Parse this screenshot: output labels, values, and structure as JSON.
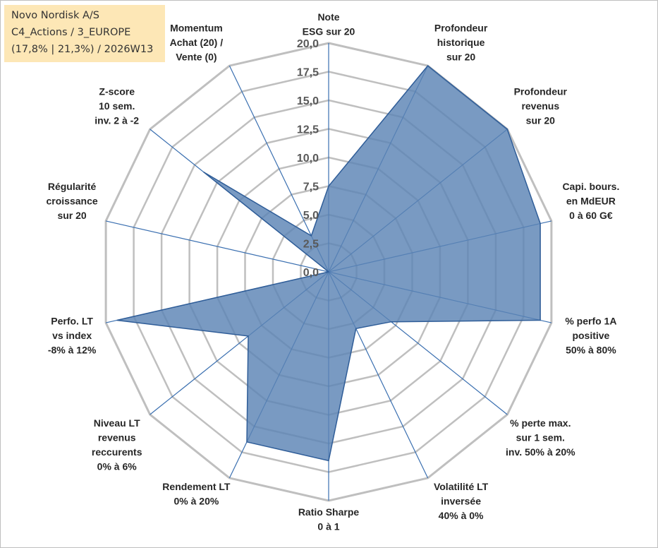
{
  "info_box": {
    "line1": "Novo Nordisk A/S",
    "line2": "C4_Actions / 3_EUROPE",
    "line3": "(17,8% | 21,3%) / 2026W13"
  },
  "colors": {
    "fill": "#5b84b5",
    "stroke": "#2f5d98",
    "grid": "#bfbfbf",
    "spoke": "#3a6fb0"
  },
  "chart_data": {
    "type": "radar",
    "title": "",
    "rmax": 20,
    "tick_labels": [
      "0,0",
      "2,5",
      "5,0",
      "7,5",
      "10,0",
      "12,5",
      "15,0",
      "17,5",
      "20,0"
    ],
    "grid": true,
    "axes": [
      [
        "Note",
        "ESG sur 20"
      ],
      [
        "Profondeur",
        "historique",
        "sur 20"
      ],
      [
        "Profondeur",
        "revenus",
        "sur 20"
      ],
      [
        "Capi. bours.",
        "en MdEUR",
        "0 à 60 G€"
      ],
      [
        "% perfo 1A",
        "positive",
        "50% à 80%"
      ],
      [
        "% perte max.",
        "sur 1 sem.",
        "inv. 50% à 20%"
      ],
      [
        "Volatilité LT",
        "inversée",
        "40% à 0%"
      ],
      [
        "Ratio Sharpe",
        "0 à 1"
      ],
      [
        "Rendement LT",
        "0% à 20%"
      ],
      [
        "Niveau LT",
        "revenus",
        "reccurents",
        "0% à 6%"
      ],
      [
        "Perfo. LT",
        "vs index",
        "-8% à 12%"
      ],
      [
        "Régularité",
        "croissance",
        "sur 20"
      ],
      [
        "Z-score",
        "10 sem.",
        "inv. 2 à -2"
      ],
      [
        "Momentum",
        "Achat (20) /",
        "Vente (0)"
      ]
    ],
    "series": [
      {
        "values": [
          7.5,
          20,
          20,
          19,
          19,
          7,
          5.5,
          16.5,
          16.5,
          9,
          19,
          0,
          14,
          3.5
        ]
      }
    ]
  }
}
